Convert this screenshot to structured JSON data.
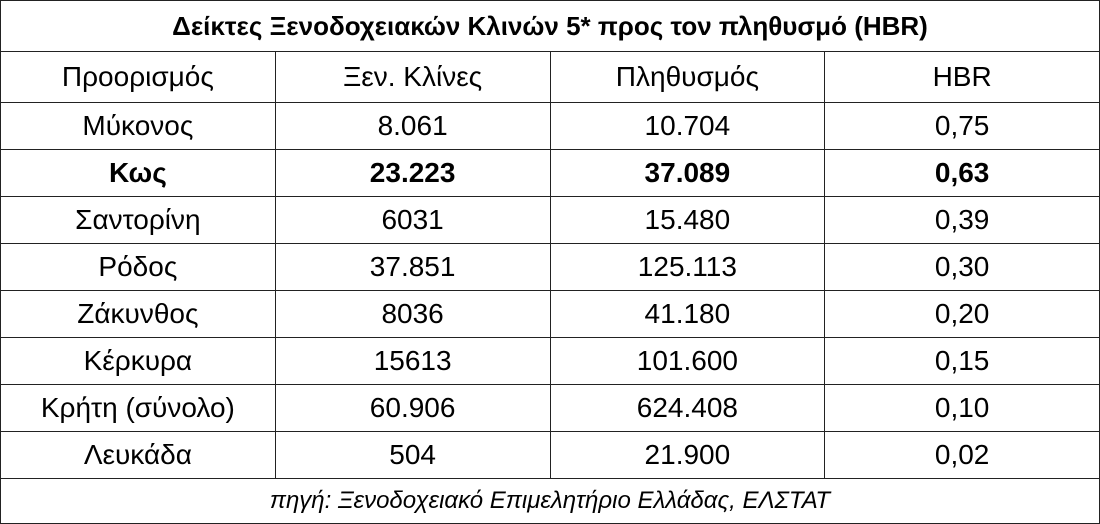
{
  "table": {
    "title": "Δείκτες Ξενοδοχειακών Κλινών 5* προς τον πληθυσμό (HBR)",
    "header": [
      "Προορισμός",
      "Ξεν. Κλίνες",
      "Πληθυσμός",
      "HBR"
    ],
    "rows": [
      [
        "Μύκονος",
        "8.061",
        "10.704",
        "0,75"
      ],
      [
        "Κως",
        "23.223",
        "37.089",
        "0,63"
      ],
      [
        "Σαντορίνη",
        "6031",
        "15.480",
        "0,39"
      ],
      [
        "Ρόδος",
        "37.851",
        "125.113",
        "0,30"
      ],
      [
        "Ζάκυνθος",
        "8036",
        "41.180",
        "0,20"
      ],
      [
        "Κέρκυρα",
        "15613",
        "101.600",
        "0,15"
      ],
      [
        "Κρήτη (σύνολο)",
        "60.906",
        "624.408",
        "0,10"
      ],
      [
        "Λευκάδα",
        "504",
        "21.900",
        "0,02"
      ]
    ],
    "source": "πηγή:  Ξενοδοχειακό Επιμελητήριο Ελλάδας, ΕΛΣΤΑΤ"
  }
}
